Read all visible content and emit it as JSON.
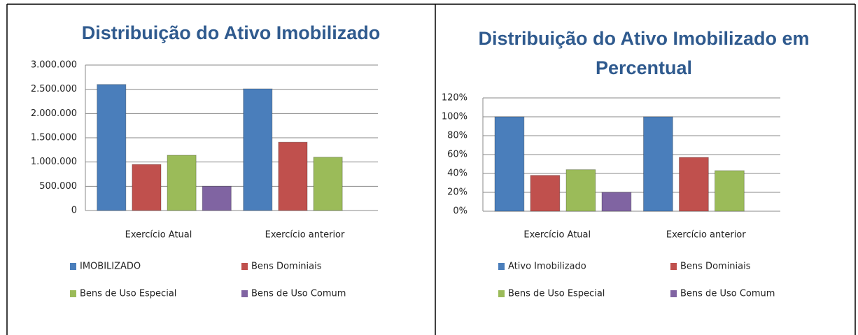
{
  "chart_data": [
    {
      "type": "bar",
      "title": "Distribuição do Ativo Imobilizado",
      "categories": [
        "Exercício Atual",
        "Exercício anterior"
      ],
      "series": [
        {
          "name": "IMOBILIZADO",
          "color": "#4a7ebb",
          "values": [
            2600000,
            2510000
          ]
        },
        {
          "name": "Bens Dominiais",
          "color": "#c0504d",
          "values": [
            950000,
            1410000
          ]
        },
        {
          "name": "Bens de Uso Especial",
          "color": "#9bbb59",
          "values": [
            1140000,
            1100000
          ]
        },
        {
          "name": "Bens de Uso Comum",
          "color": "#8064a2",
          "values": [
            500000,
            null
          ]
        }
      ],
      "ylim": [
        0,
        3000000
      ],
      "yticks": [
        0,
        {
          "value": 500000,
          "label": "500.000"
        },
        {
          "value": 1000000,
          "label": "1.000.000"
        },
        {
          "value": 1500000,
          "label": "1.500.000"
        },
        {
          "value": 2000000,
          "label": "2.000.000"
        },
        {
          "value": 2500000,
          "label": "2.500.000"
        },
        {
          "value": 3000000,
          "label": "3.000.000"
        }
      ],
      "grid": true,
      "legend": "bottom"
    },
    {
      "type": "bar",
      "title": "Distribuição do Ativo Imobilizado em Percentual",
      "categories": [
        "Exercício Atual",
        "Exercício anterior"
      ],
      "series": [
        {
          "name": "Ativo Imobilizado",
          "color": "#4a7ebb",
          "values": [
            100,
            100
          ]
        },
        {
          "name": "Bens Dominiais",
          "color": "#c0504d",
          "values": [
            38,
            57
          ]
        },
        {
          "name": "Bens de Uso Especial",
          "color": "#9bbb59",
          "values": [
            44,
            43
          ]
        },
        {
          "name": "Bens de Uso Comum",
          "color": "#8064a2",
          "values": [
            20,
            null
          ]
        }
      ],
      "ylim": [
        0,
        120
      ],
      "yticks": [
        {
          "value": 0,
          "label": "0%"
        },
        {
          "value": 20,
          "label": "20%"
        },
        {
          "value": 40,
          "label": "40%"
        },
        {
          "value": 60,
          "label": "60%"
        },
        {
          "value": 80,
          "label": "80%"
        },
        {
          "value": 100,
          "label": "100%"
        },
        {
          "value": 120,
          "label": "120%"
        }
      ],
      "grid": true,
      "legend": "bottom"
    }
  ]
}
